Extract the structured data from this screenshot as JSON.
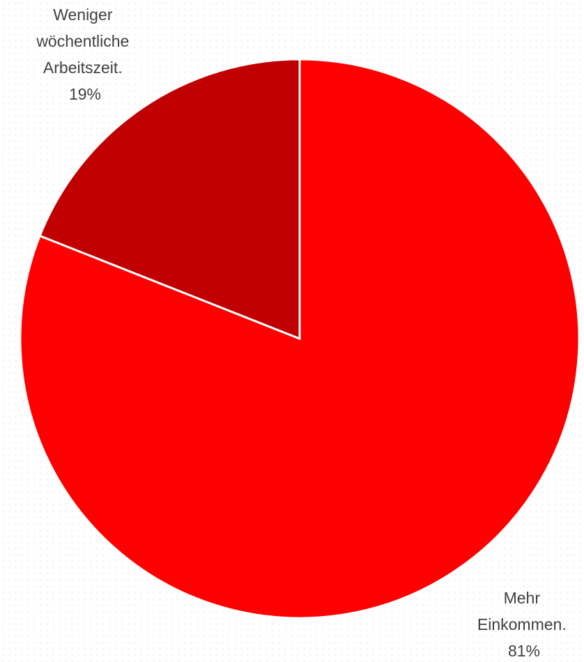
{
  "chart_data": {
    "type": "pie",
    "slices": [
      {
        "label": "Mehr Einkommen.",
        "value": 81,
        "value_label": "81%",
        "color": "#ff0000"
      },
      {
        "label": "Weniger wöchentliche Arbeitszeit.",
        "value": 19,
        "value_label": "19%",
        "color": "#c00000"
      }
    ],
    "start_angle_deg": 0,
    "direction": "clockwise",
    "legend": "none",
    "data_labels": "outside"
  }
}
